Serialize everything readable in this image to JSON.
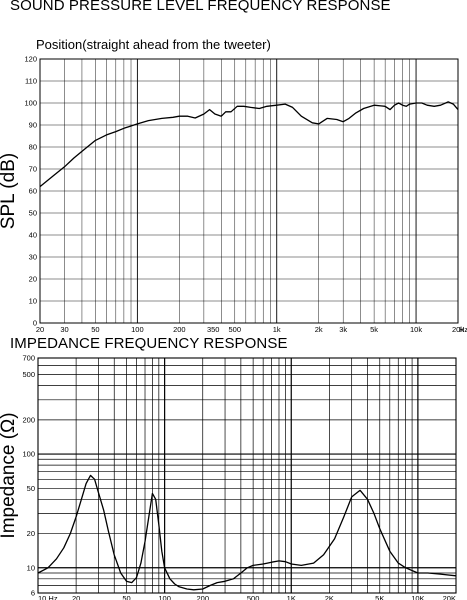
{
  "chart_data": [
    {
      "type": "line",
      "title": "SOUND PRESSURE LEVEL FREQUENCY RESPONSE",
      "subtitle": "Position(straight ahead from the tweeter)",
      "xlabel": "",
      "ylabel": "SPL (dB)",
      "x_scale": "log",
      "xlim": [
        20,
        20000
      ],
      "ylim": [
        0,
        120
      ],
      "grid": true,
      "x_tick_labels": [
        "20",
        "30",
        "50",
        "100",
        "200",
        "350",
        "500",
        "1k",
        "2k",
        "3k",
        "5k",
        "10k",
        "20k"
      ],
      "x_unit_label": "Hz",
      "y_tick_labels": [
        "0",
        "10",
        "20",
        "30",
        "40",
        "50",
        "60",
        "70",
        "80",
        "90",
        "100",
        "110",
        "120"
      ],
      "series": [
        {
          "x": [
            20,
            25,
            30,
            35,
            40,
            50,
            60,
            70,
            80,
            100,
            120,
            150,
            180,
            200,
            230,
            260,
            300,
            330,
            360,
            400,
            430,
            470,
            520,
            580,
            650,
            750,
            850,
            1000,
            1150,
            1300,
            1500,
            1800,
            2000,
            2300,
            2700,
            3000,
            3300,
            3700,
            4200,
            5000,
            6000,
            6500,
            7000,
            7500,
            8000,
            8500,
            9000,
            10000,
            11000,
            12000,
            13500,
            15000,
            17000,
            18500,
            20000
          ],
          "y": [
            62,
            67,
            71,
            75,
            78,
            83,
            85.5,
            87,
            88.5,
            90.5,
            92,
            93,
            93.5,
            94,
            94,
            93.2,
            95,
            97,
            95,
            94,
            96,
            96,
            98.5,
            98.5,
            98,
            97.5,
            98.5,
            99,
            99.5,
            98,
            94,
            91,
            90.5,
            93,
            92.5,
            91.5,
            93,
            95.5,
            97.5,
            99,
            98.5,
            97,
            99,
            100,
            99,
            98.5,
            99.5,
            100,
            100,
            99,
            98.5,
            99,
            100.5,
            99.5,
            97
          ]
        }
      ]
    },
    {
      "type": "line",
      "title": "IMPEDANCE FREQUENCY RESPONSE",
      "xlabel": "",
      "ylabel": "Impedance (Ω)",
      "x_scale": "log",
      "y_scale": "log",
      "xlim": [
        10,
        20000
      ],
      "ylim": [
        6,
        700
      ],
      "grid": true,
      "x_tick_labels": [
        "10 Hz",
        "20",
        "50",
        "100",
        "200",
        "500",
        "1K",
        "2K",
        "5K",
        "10K",
        "20K"
      ],
      "y_tick_labels": [
        "6",
        "10",
        "20",
        "50",
        "100",
        "200",
        "500",
        "700"
      ],
      "series": [
        {
          "x": [
            10,
            12,
            14,
            16,
            18,
            20,
            22,
            24,
            26,
            28,
            30,
            33,
            36,
            40,
            45,
            50,
            55,
            60,
            65,
            70,
            75,
            80,
            85,
            90,
            95,
            100,
            110,
            120,
            130,
            150,
            170,
            200,
            230,
            260,
            300,
            350,
            400,
            450,
            500,
            600,
            700,
            800,
            900,
            1000,
            1200,
            1500,
            1800,
            2200,
            2600,
            3000,
            3500,
            4000,
            4500,
            5000,
            6000,
            7000,
            8000,
            10000,
            12000,
            15000,
            20000
          ],
          "y": [
            9,
            10,
            12,
            15,
            20,
            28,
            40,
            55,
            65,
            60,
            46,
            32,
            21,
            13,
            9,
            7.6,
            7.4,
            8.2,
            11,
            17,
            28,
            45,
            40,
            24,
            14,
            10,
            8,
            7.2,
            6.8,
            6.5,
            6.4,
            6.5,
            7,
            7.4,
            7.6,
            8,
            9,
            10,
            10.5,
            10.8,
            11.2,
            11.5,
            11.3,
            10.8,
            10.5,
            11,
            13,
            18,
            28,
            42,
            48,
            40,
            30,
            22,
            14,
            11,
            10,
            9,
            9,
            8.8,
            8.5
          ]
        }
      ]
    }
  ]
}
